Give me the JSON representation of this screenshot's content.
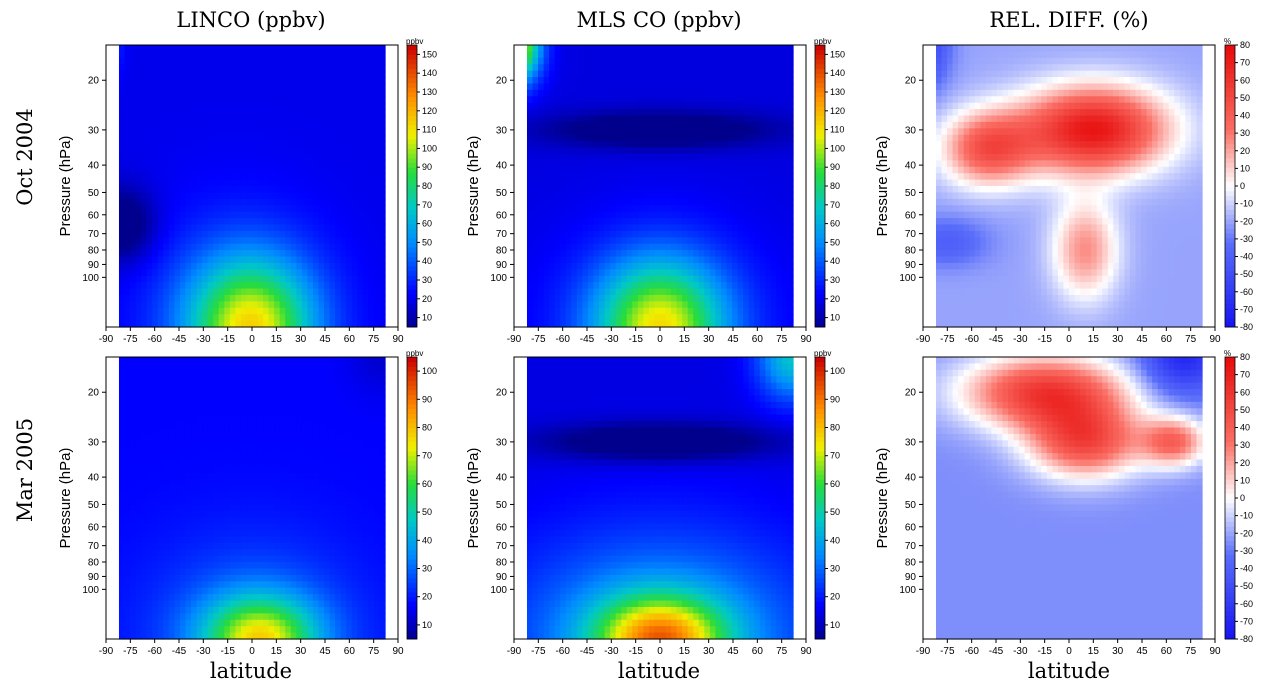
{
  "figure": {
    "column_titles": [
      "LINCO (ppbv)",
      "MLS CO (ppbv)",
      "REL. DIFF. (%)"
    ],
    "row_labels": [
      "Oct 2004",
      "Mar 2005"
    ],
    "xlabel": "latitude",
    "ylabel": "Pressure (hPa)"
  },
  "chart_data": [
    {
      "type": "heatmap",
      "panel": "LINCO (ppbv)",
      "row": "Oct 2004",
      "x": {
        "ticks": [
          -90,
          -75,
          -60,
          -45,
          -30,
          -15,
          0,
          15,
          30,
          45,
          60,
          75,
          90
        ],
        "range": [
          -90,
          90
        ],
        "data_extent": [
          -82,
          82
        ]
      },
      "y": {
        "label": "Pressure (hPa)",
        "ticks": [
          20,
          30,
          40,
          50,
          60,
          70,
          80,
          90,
          100
        ],
        "scale": "log",
        "range_top_to_bottom": [
          15,
          150
        ]
      },
      "colorbar": {
        "unit": "ppbv",
        "range": [
          5,
          155
        ],
        "ticks": [
          10,
          20,
          30,
          40,
          50,
          60,
          70,
          80,
          90,
          100,
          110,
          120,
          130,
          140,
          150
        ],
        "colormap": "jet"
      },
      "field": {
        "background": 20,
        "features": [
          {
            "lat": 0,
            "p": 150,
            "value": 105,
            "lat_width": 38,
            "p_width": 0.55
          },
          {
            "lat": -10,
            "p": 150,
            "value": 40,
            "lat_width": 55,
            "p_width": 0.9
          },
          {
            "lat": -90,
            "p": 15,
            "value": 50,
            "lat_width": 8,
            "p_width": 0.25
          },
          {
            "lat": -80,
            "p": 65,
            "value": -5,
            "lat_width": 20,
            "p_width": 0.3
          }
        ]
      }
    },
    {
      "type": "heatmap",
      "panel": "MLS CO (ppbv)",
      "row": "Oct 2004",
      "x": {
        "ticks": [
          -90,
          -75,
          -60,
          -45,
          -30,
          -15,
          0,
          15,
          30,
          45,
          60,
          75,
          90
        ],
        "range": [
          -90,
          90
        ],
        "data_extent": [
          -82,
          82
        ]
      },
      "y": {
        "label": "Pressure (hPa)",
        "ticks": [
          20,
          30,
          40,
          50,
          60,
          70,
          80,
          90,
          100
        ],
        "scale": "log",
        "range_top_to_bottom": [
          15,
          150
        ]
      },
      "colorbar": {
        "unit": "ppbv",
        "range": [
          5,
          155
        ],
        "ticks": [
          10,
          20,
          30,
          40,
          50,
          60,
          70,
          80,
          90,
          100,
          110,
          120,
          130,
          140,
          150
        ],
        "colormap": "jet"
      },
      "field": {
        "background": 18,
        "features": [
          {
            "lat": 0,
            "p": 150,
            "value": 110,
            "lat_width": 40,
            "p_width": 0.55
          },
          {
            "lat": 0,
            "p": 150,
            "value": 30,
            "lat_width": 80,
            "p_width": 0.9
          },
          {
            "lat": -90,
            "p": 15,
            "value": 140,
            "lat_width": 15,
            "p_width": 0.3
          },
          {
            "lat": 0,
            "p": 30,
            "value": -6,
            "lat_width": 70,
            "p_width": 0.15
          }
        ]
      }
    },
    {
      "type": "heatmap",
      "panel": "REL. DIFF. (%)",
      "row": "Oct 2004",
      "x": {
        "ticks": [
          -90,
          -75,
          -60,
          -45,
          -30,
          -15,
          0,
          15,
          30,
          45,
          60,
          75,
          90
        ],
        "range": [
          -90,
          90
        ],
        "data_extent": [
          -82,
          82
        ]
      },
      "y": {
        "label": "Pressure (hPa)",
        "ticks": [
          20,
          30,
          40,
          50,
          60,
          70,
          80,
          90,
          100
        ],
        "scale": "log",
        "range_top_to_bottom": [
          15,
          150
        ]
      },
      "colorbar": {
        "unit": "%",
        "range": [
          -80,
          80
        ],
        "ticks": [
          -80,
          -70,
          -60,
          -50,
          -40,
          -30,
          -20,
          -10,
          0,
          10,
          20,
          30,
          40,
          50,
          60,
          70,
          80
        ],
        "colormap": "bwr"
      },
      "field": {
        "background": -20,
        "features": [
          {
            "lat": 15,
            "p": 30,
            "value": 85,
            "lat_width": 45,
            "p_width": 0.35
          },
          {
            "lat": -50,
            "p": 35,
            "value": 50,
            "lat_width": 28,
            "p_width": 0.3
          },
          {
            "lat": 10,
            "p": 80,
            "value": 30,
            "lat_width": 20,
            "p_width": 0.4
          },
          {
            "lat": -90,
            "p": 15,
            "value": -60,
            "lat_width": 15,
            "p_width": 0.35
          },
          {
            "lat": -75,
            "p": 75,
            "value": -40,
            "lat_width": 25,
            "p_width": 0.2
          }
        ]
      }
    },
    {
      "type": "heatmap",
      "panel": "LINCO (ppbv)",
      "row": "Mar 2005",
      "x": {
        "ticks": [
          -90,
          -75,
          -60,
          -45,
          -30,
          -15,
          0,
          15,
          30,
          45,
          60,
          75,
          90
        ],
        "range": [
          -90,
          90
        ],
        "data_extent": [
          -82,
          82
        ]
      },
      "y": {
        "label": "Pressure (hPa)",
        "ticks": [
          20,
          30,
          40,
          50,
          60,
          70,
          80,
          90,
          100
        ],
        "scale": "log",
        "range_top_to_bottom": [
          15,
          150
        ]
      },
      "colorbar": {
        "unit": "ppbv",
        "range": [
          5,
          105
        ],
        "ticks": [
          10,
          20,
          30,
          40,
          50,
          60,
          70,
          80,
          90,
          100
        ],
        "colormap": "jet"
      },
      "field": {
        "background": 17,
        "features": [
          {
            "lat": 5,
            "p": 150,
            "value": 70,
            "lat_width": 35,
            "p_width": 0.35
          },
          {
            "lat": 0,
            "p": 150,
            "value": 32,
            "lat_width": 65,
            "p_width": 0.8
          },
          {
            "lat": 80,
            "p": 15,
            "value": 12,
            "lat_width": 20,
            "p_width": 0.3
          }
        ]
      }
    },
    {
      "type": "heatmap",
      "panel": "MLS CO (ppbv)",
      "row": "Mar 2005",
      "x": {
        "ticks": [
          -90,
          -75,
          -60,
          -45,
          -30,
          -15,
          0,
          15,
          30,
          45,
          60,
          75,
          90
        ],
        "range": [
          -90,
          90
        ],
        "data_extent": [
          -82,
          82
        ]
      },
      "y": {
        "label": "Pressure (hPa)",
        "ticks": [
          20,
          30,
          40,
          50,
          60,
          70,
          80,
          90,
          100
        ],
        "scale": "log",
        "range_top_to_bottom": [
          15,
          150
        ]
      },
      "colorbar": {
        "unit": "ppbv",
        "range": [
          5,
          105
        ],
        "ticks": [
          10,
          20,
          30,
          40,
          50,
          60,
          70,
          80,
          90,
          100
        ],
        "colormap": "jet"
      },
      "field": {
        "background": 14,
        "features": [
          {
            "lat": 0,
            "p": 150,
            "value": 75,
            "lat_width": 40,
            "p_width": 0.35
          },
          {
            "lat": 0,
            "p": 150,
            "value": 42,
            "lat_width": 95,
            "p_width": 0.9
          },
          {
            "lat": 82,
            "p": 15,
            "value": 50,
            "lat_width": 22,
            "p_width": 0.35
          },
          {
            "lat": 0,
            "p": 30,
            "value": -4,
            "lat_width": 70,
            "p_width": 0.15
          }
        ]
      }
    },
    {
      "type": "heatmap",
      "panel": "REL. DIFF. (%)",
      "row": "Mar 2005",
      "x": {
        "ticks": [
          -90,
          -75,
          -60,
          -45,
          -30,
          -15,
          0,
          15,
          30,
          45,
          60,
          75,
          90
        ],
        "range": [
          -90,
          90
        ],
        "data_extent": [
          -82,
          82
        ]
      },
      "y": {
        "label": "Pressure (hPa)",
        "ticks": [
          20,
          30,
          40,
          50,
          60,
          70,
          80,
          90,
          100
        ],
        "scale": "log",
        "range_top_to_bottom": [
          15,
          150
        ]
      },
      "colorbar": {
        "unit": "%",
        "range": [
          -80,
          80
        ],
        "ticks": [
          -80,
          -70,
          -60,
          -50,
          -40,
          -30,
          -20,
          -10,
          0,
          10,
          20,
          30,
          40,
          50,
          60,
          70,
          80
        ],
        "colormap": "bwr"
      },
      "field": {
        "background": -25,
        "features": [
          {
            "lat": -15,
            "p": 20,
            "value": 65,
            "lat_width": 50,
            "p_width": 0.3
          },
          {
            "lat": 10,
            "p": 30,
            "value": 55,
            "lat_width": 35,
            "p_width": 0.3
          },
          {
            "lat": 65,
            "p": 30,
            "value": 40,
            "lat_width": 20,
            "p_width": 0.2
          },
          {
            "lat": 70,
            "p": 15,
            "value": -70,
            "lat_width": 25,
            "p_width": 0.3
          }
        ]
      }
    }
  ]
}
